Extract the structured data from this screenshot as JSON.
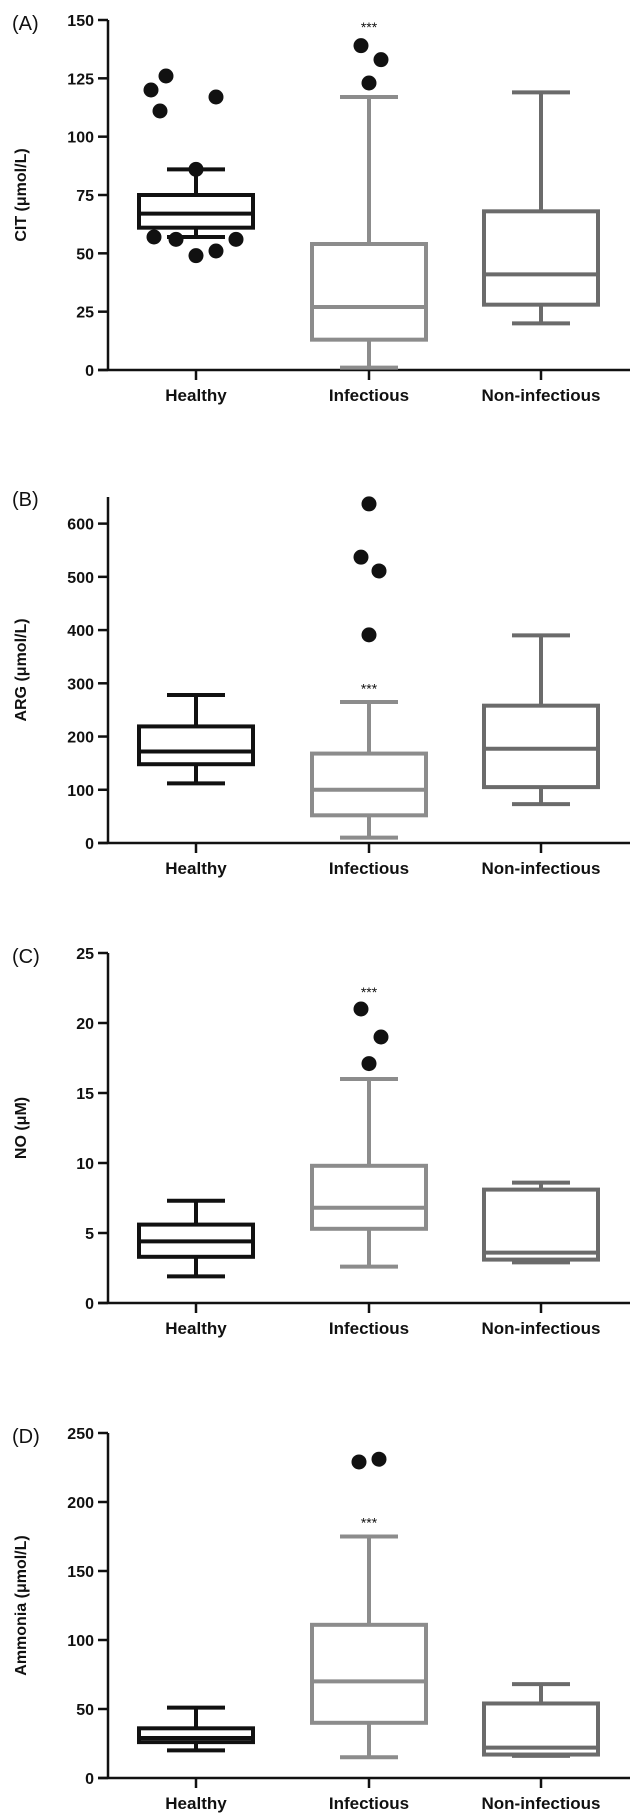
{
  "chart_data": [
    {
      "type": "box",
      "panel_label": "(A)",
      "ylabel": "CIT (μmol/L)",
      "ylim": [
        0,
        150
      ],
      "yticks": [
        0,
        25,
        50,
        75,
        100,
        125,
        150
      ],
      "categories": [
        "Healthy",
        "Infectious",
        "Non-infectious"
      ],
      "series": [
        {
          "name": "Healthy",
          "color": "#111111",
          "min": 57,
          "q1": 61,
          "median": 67,
          "q3": 75,
          "max": 86,
          "outliers": [
            120,
            126,
            111,
            117,
            86,
            57,
            56,
            49,
            51,
            56
          ]
        },
        {
          "name": "Infectious",
          "color": "#8c8c8c",
          "min": 1,
          "q1": 13,
          "median": 27,
          "q3": 54,
          "max": 117,
          "outliers": [
            139,
            133,
            123
          ]
        },
        {
          "name": "Non-infectious",
          "color": "#6b6b6b",
          "min": 20,
          "q1": 28,
          "median": 41,
          "q3": 68,
          "max": 119,
          "outliers": []
        }
      ],
      "annotations": [
        {
          "category": "Infectious",
          "text": "***",
          "y": 147
        }
      ]
    },
    {
      "type": "box",
      "panel_label": "(B)",
      "ylabel": "ARG (μmol/L)",
      "ylim": [
        0,
        650
      ],
      "yticks": [
        0,
        100,
        200,
        300,
        400,
        500,
        600
      ],
      "categories": [
        "Healthy",
        "Infectious",
        "Non-infectious"
      ],
      "series": [
        {
          "name": "Healthy",
          "color": "#111111",
          "min": 112,
          "q1": 148,
          "median": 172,
          "q3": 219,
          "max": 278,
          "outliers": []
        },
        {
          "name": "Infectious",
          "color": "#8c8c8c",
          "min": 10,
          "q1": 52,
          "median": 100,
          "q3": 168,
          "max": 265,
          "outliers": [
            637,
            537,
            511,
            391
          ]
        },
        {
          "name": "Non-infectious",
          "color": "#6b6b6b",
          "min": 73,
          "q1": 105,
          "median": 177,
          "q3": 258,
          "max": 390,
          "outliers": []
        }
      ],
      "annotations": [
        {
          "category": "Infectious",
          "text": "***",
          "y": 290
        }
      ]
    },
    {
      "type": "box",
      "panel_label": "(C)",
      "ylabel": "NO (μM)",
      "ylim": [
        0,
        25
      ],
      "yticks": [
        0,
        5,
        10,
        15,
        20,
        25
      ],
      "categories": [
        "Healthy",
        "Infectious",
        "Non-infectious"
      ],
      "series": [
        {
          "name": "Healthy",
          "color": "#111111",
          "min": 1.9,
          "q1": 3.3,
          "median": 4.4,
          "q3": 5.6,
          "max": 7.3,
          "outliers": []
        },
        {
          "name": "Infectious",
          "color": "#8c8c8c",
          "min": 2.6,
          "q1": 5.3,
          "median": 6.8,
          "q3": 9.8,
          "max": 16.0,
          "outliers": [
            21.0,
            19.0,
            17.1
          ]
        },
        {
          "name": "Non-infectious",
          "color": "#6b6b6b",
          "min": 2.9,
          "q1": 3.1,
          "median": 3.6,
          "q3": 8.1,
          "max": 8.6,
          "outliers": []
        }
      ],
      "annotations": [
        {
          "category": "Infectious",
          "text": "***",
          "y": 22.2
        }
      ]
    },
    {
      "type": "box",
      "panel_label": "(D)",
      "ylabel": "Ammonia (μmol/L)",
      "ylim": [
        0,
        250
      ],
      "yticks": [
        0,
        50,
        100,
        150,
        200,
        250
      ],
      "categories": [
        "Healthy",
        "Infectious",
        "Non-infectious"
      ],
      "series": [
        {
          "name": "Healthy",
          "color": "#111111",
          "min": 20,
          "q1": 26,
          "median": 29,
          "q3": 36,
          "max": 51,
          "outliers": []
        },
        {
          "name": "Infectious",
          "color": "#8c8c8c",
          "min": 15,
          "q1": 40,
          "median": 70,
          "q3": 111,
          "max": 175,
          "outliers": [
            229,
            231
          ]
        },
        {
          "name": "Non-infectious",
          "color": "#6b6b6b",
          "min": 16,
          "q1": 17,
          "median": 22,
          "q3": 54,
          "max": 68,
          "outliers": []
        }
      ],
      "annotations": [
        {
          "category": "Infectious",
          "text": "***",
          "y": 185
        }
      ]
    }
  ]
}
